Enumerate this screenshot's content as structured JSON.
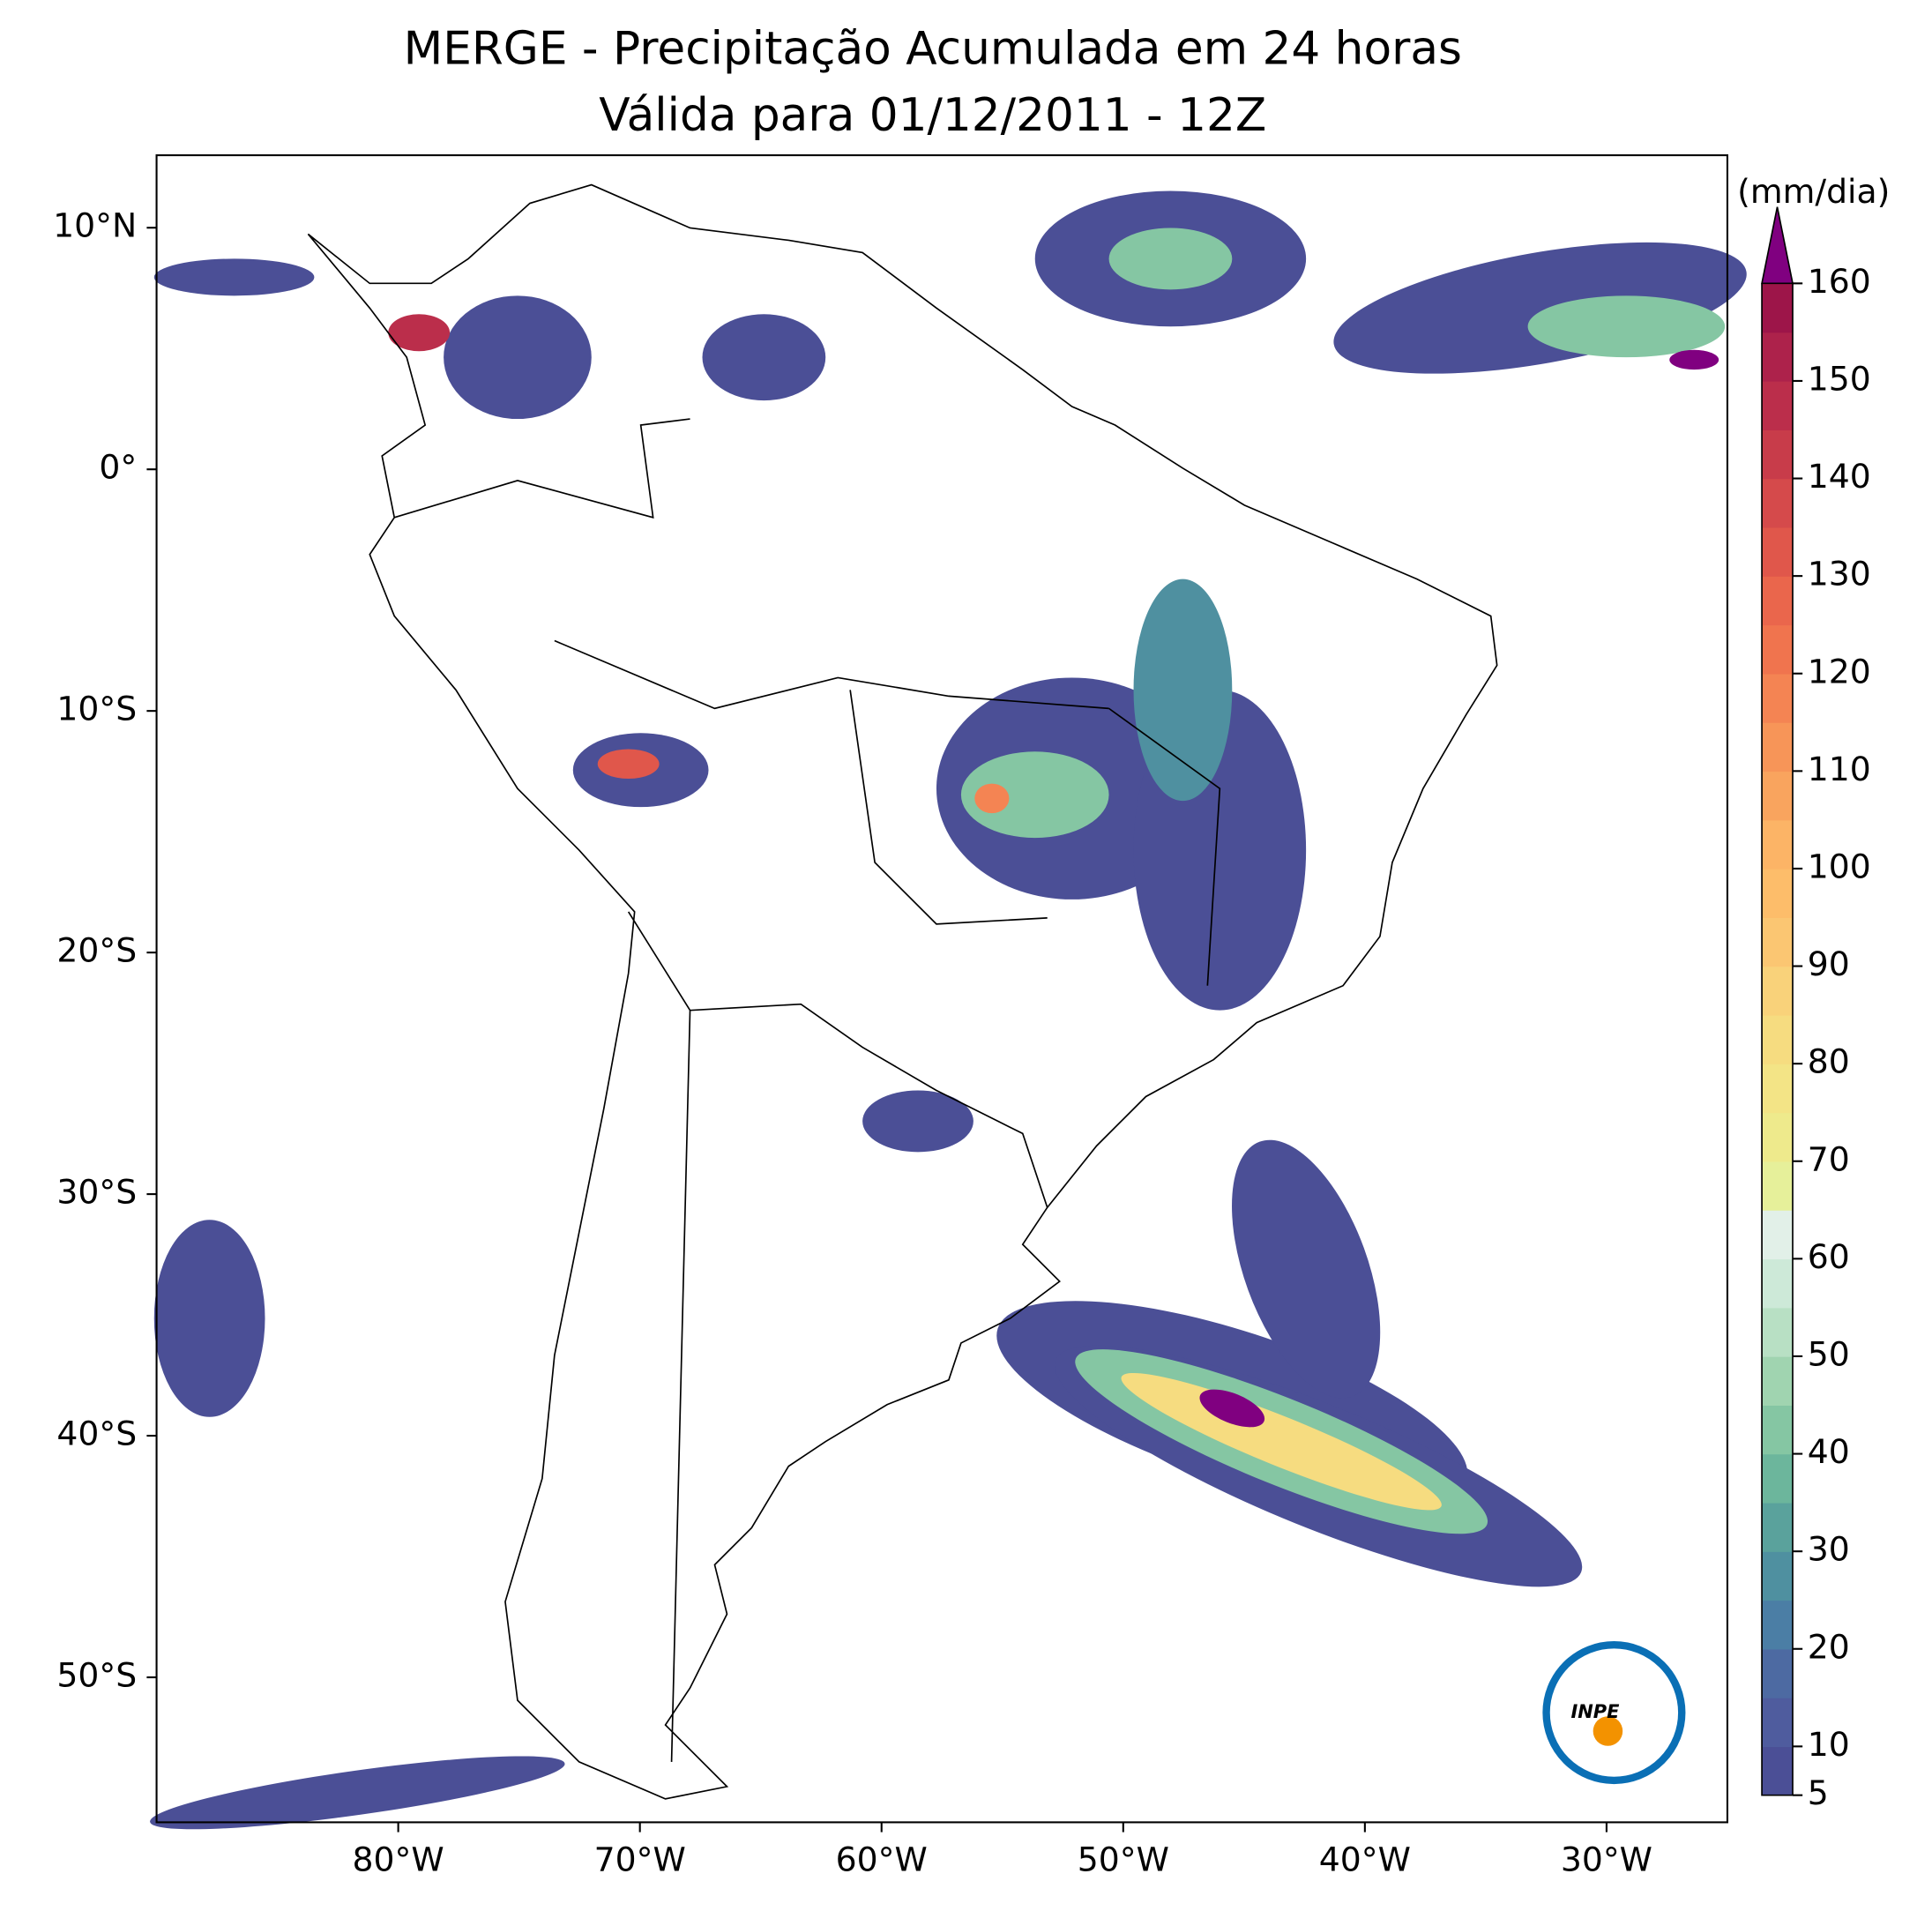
{
  "map": {
    "title": "MERGE - Precipitação Acumulada em 24 horas",
    "subtitle": "Válida para 01/12/2011 - 12Z",
    "xlim": [
      -90,
      -25
    ],
    "ylim": [
      -56,
      13
    ],
    "xticks": [
      {
        "value": -80,
        "label": "80°W"
      },
      {
        "value": -70,
        "label": "70°W"
      },
      {
        "value": -60,
        "label": "60°W"
      },
      {
        "value": -50,
        "label": "50°W"
      },
      {
        "value": -40,
        "label": "40°W"
      },
      {
        "value": -30,
        "label": "30°W"
      }
    ],
    "yticks": [
      {
        "value": 10,
        "label": "10°N"
      },
      {
        "value": 0,
        "label": "0°"
      },
      {
        "value": -10,
        "label": "10°S"
      },
      {
        "value": -20,
        "label": "20°S"
      },
      {
        "value": -30,
        "label": "30°S"
      },
      {
        "value": -40,
        "label": "40°S"
      },
      {
        "value": -50,
        "label": "50°S"
      }
    ],
    "colorbar": {
      "label": "(mm/dia)",
      "levels": [
        5,
        10,
        15,
        20,
        25,
        30,
        35,
        40,
        45,
        50,
        55,
        60,
        65,
        70,
        75,
        80,
        85,
        90,
        95,
        100,
        105,
        110,
        115,
        120,
        125,
        130,
        135,
        140,
        145,
        150,
        155,
        160
      ],
      "colors": [
        "#4b4f96",
        "#4f5c9e",
        "#4d6aa2",
        "#4b7ea5",
        "#4f90a0",
        "#5aa29c",
        "#6cb69c",
        "#85c6a3",
        "#a0d4b0",
        "#b8e0c4",
        "#cde9d8",
        "#e2f0e8",
        "#e6f09a",
        "#eeea8c",
        "#f3e486",
        "#f6dc80",
        "#f9d27a",
        "#fbc672",
        "#fdbd6a",
        "#fcb466",
        "#f9a45e",
        "#f79558",
        "#f48453",
        "#f0744e",
        "#ea664c",
        "#e0574b",
        "#d54a4b",
        "#c83c4a",
        "#bb2e4b",
        "#ad224b",
        "#9d1549"
      ],
      "extend_color": "#800080",
      "ticks": [
        5,
        10,
        20,
        30,
        40,
        50,
        60,
        70,
        80,
        90,
        100,
        110,
        120,
        130,
        140,
        150,
        160
      ]
    },
    "logo": "INPE"
  }
}
